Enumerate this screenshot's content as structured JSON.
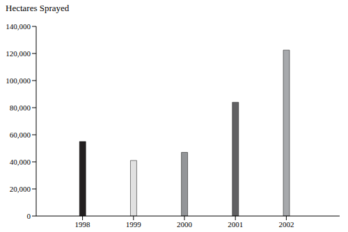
{
  "chart_data": {
    "type": "bar",
    "ylabel": "Hectares Sprayed",
    "categories": [
      "1998",
      "1999",
      "2000",
      "2001",
      "2002"
    ],
    "values": [
      55000,
      41000,
      47000,
      84000,
      122500
    ],
    "colors": [
      "#231f20",
      "#e1e1e1",
      "#939598",
      "#616163",
      "#a7a9ac"
    ],
    "ylim": [
      0,
      140000
    ],
    "yticks": [
      0,
      {
        "value": 20000,
        "label": "20,000"
      },
      {
        "value": 40000,
        "label": "40,000"
      },
      {
        "value": 60000,
        "label": "60,000"
      },
      {
        "value": 80000,
        "label": "80,000"
      },
      {
        "value": 100000,
        "label": "100,000"
      },
      {
        "value": 120000,
        "label": "120,000"
      },
      {
        "value": 140000,
        "label": "140,000"
      }
    ],
    "grid": false
  }
}
